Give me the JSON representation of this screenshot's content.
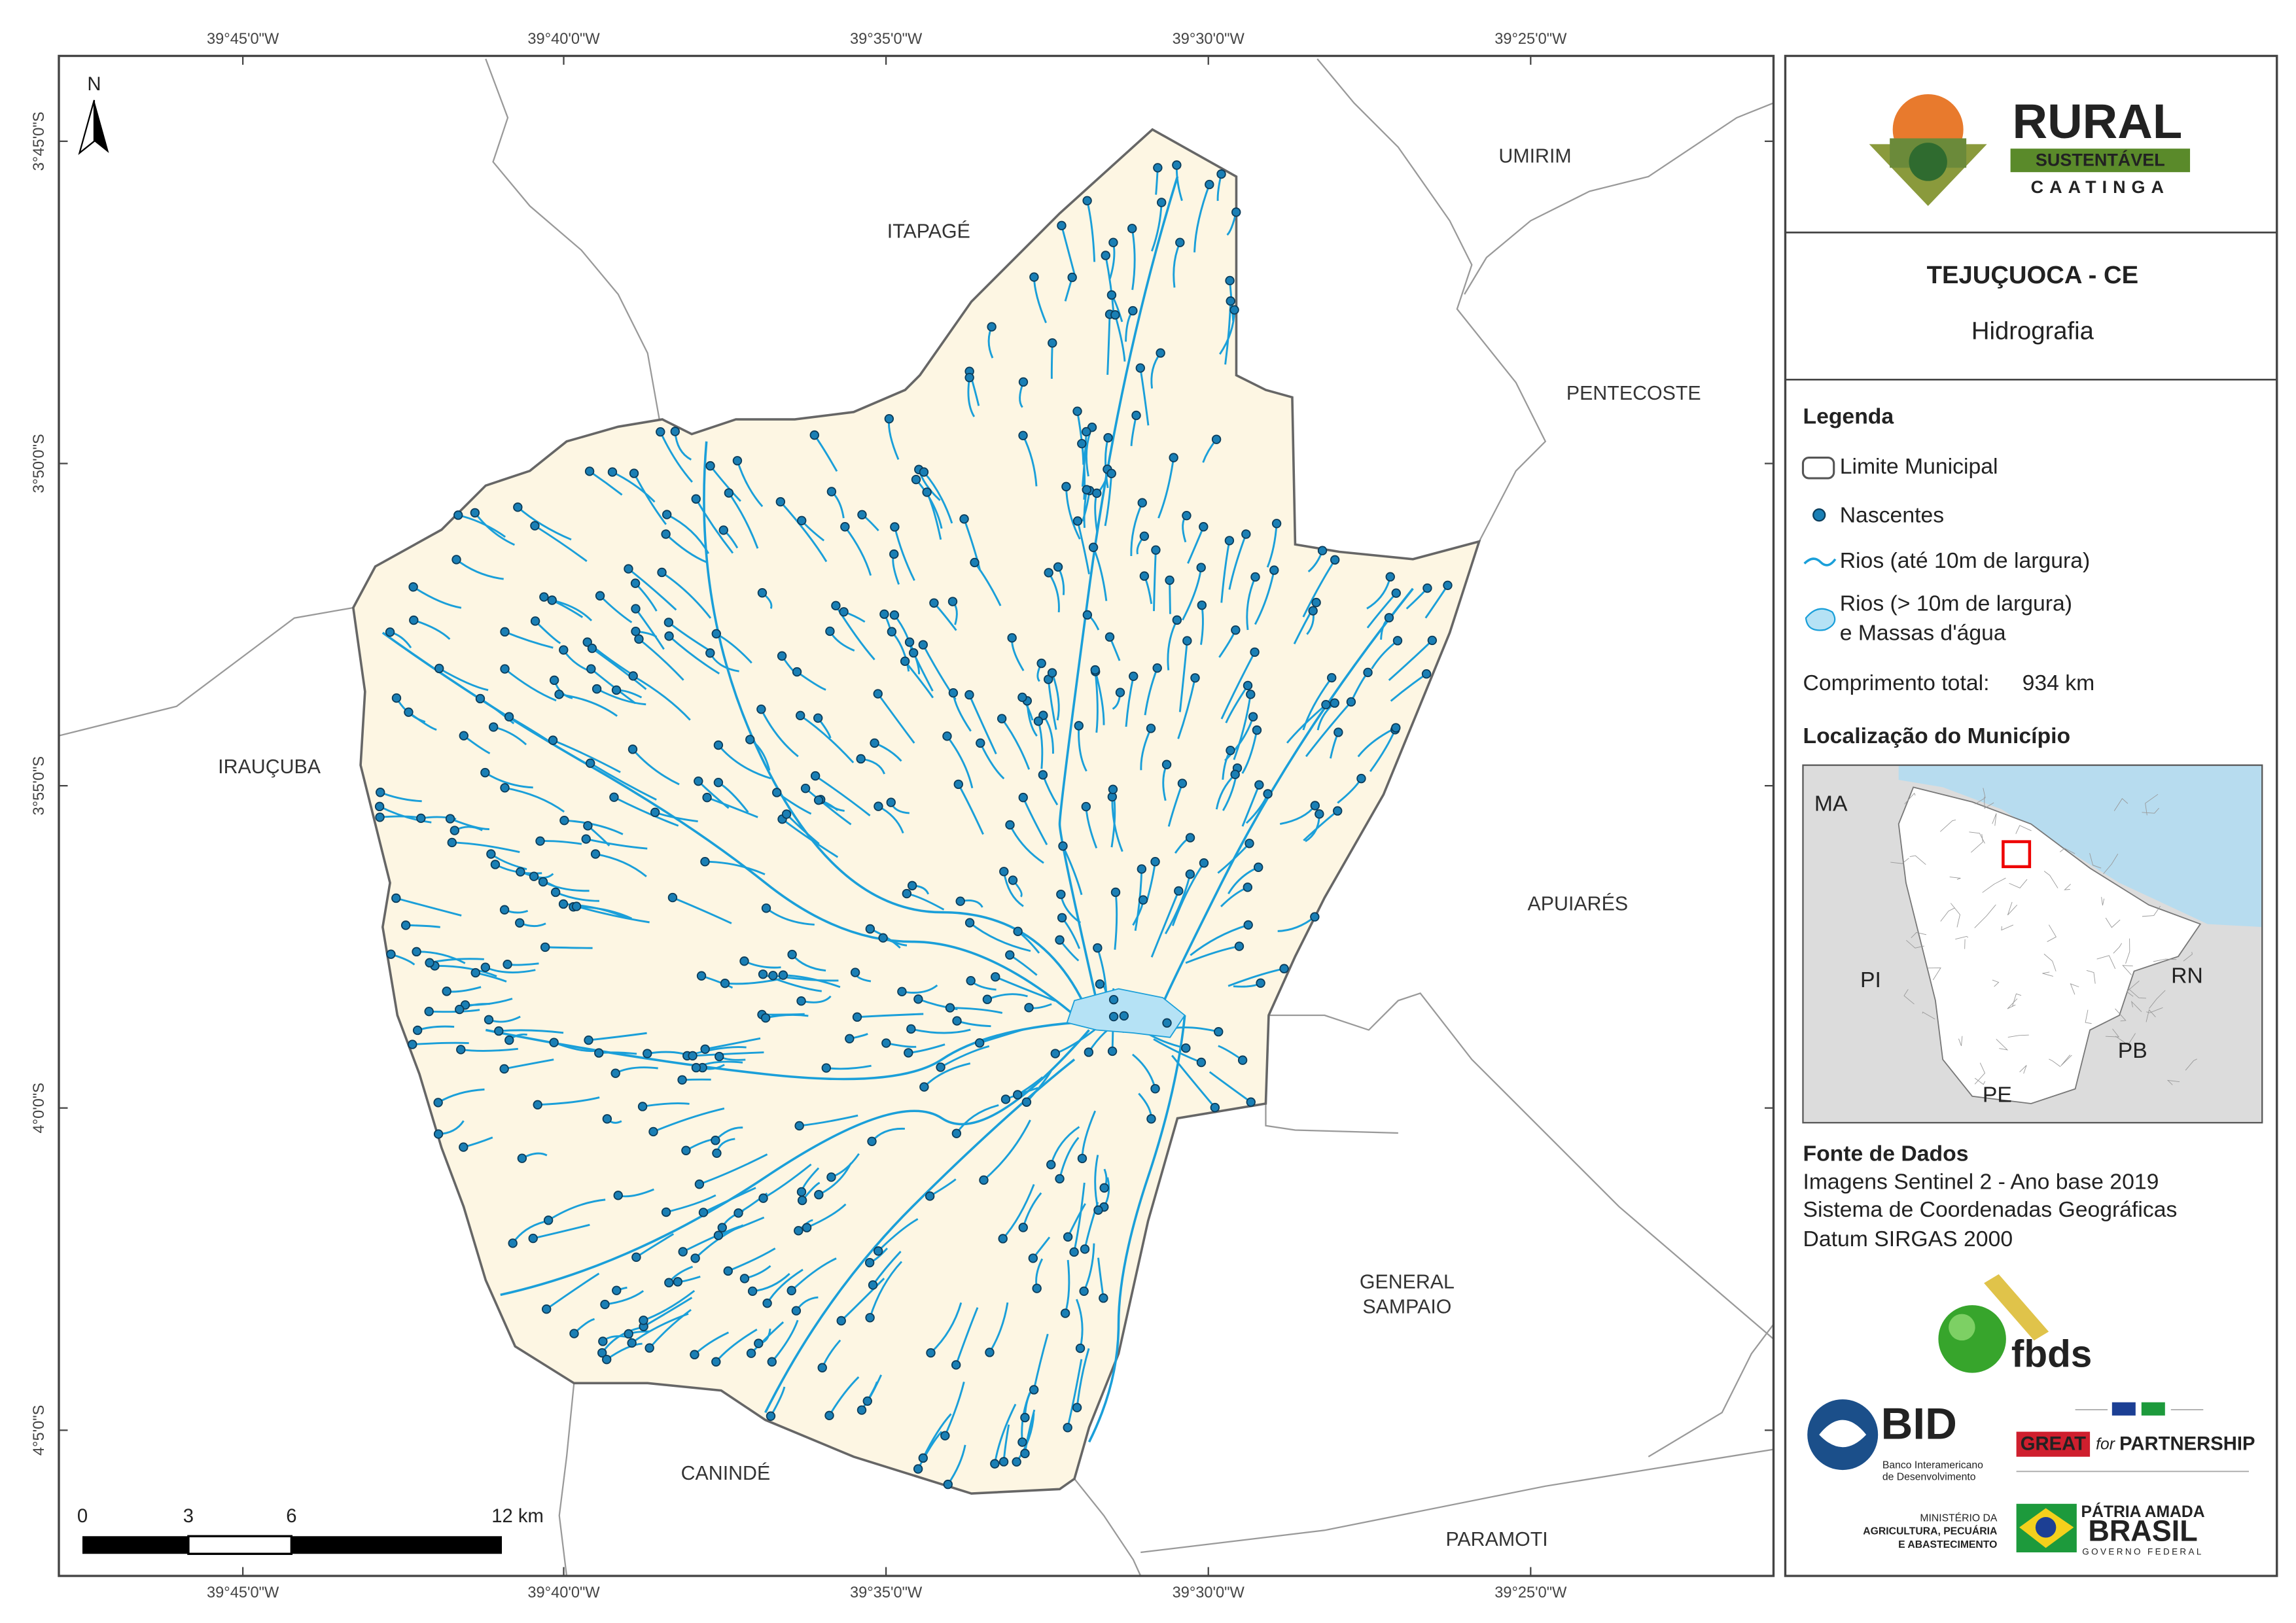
{
  "map": {
    "north": "N",
    "longitude_labels": [
      "39°45'0\"W",
      "39°40'0\"W",
      "39°35'0\"W",
      "39°30'0\"W",
      "39°25'0\"W"
    ],
    "latitude_labels": [
      "3°45'0\"S",
      "3°50'0\"S",
      "3°55'0\"S",
      "4°0'0\"S",
      "4°5'0\"S"
    ],
    "neighbors": [
      "ITAPAGÉ",
      "UMIRIM",
      "PENTECOSTE",
      "IRAUÇUBA",
      "APUIARÉS",
      "GENERAL",
      "SAMPAIO",
      "CANINDÉ",
      "PARAMOTI"
    ],
    "scale_labels": [
      "0",
      "3",
      "6",
      "12 km"
    ]
  },
  "brand": {
    "name": "RURAL",
    "tag": "SUSTENTÁVEL",
    "region": "CAATINGA"
  },
  "header": {
    "title": "TEJUÇUOCA - CE",
    "subtitle": "Hidrografia"
  },
  "legend": {
    "title": "Legenda",
    "boundary": "Limite Municipal",
    "springs": "Nascentes",
    "rivers": "Rios (até 10m de largura)",
    "wide_rivers": [
      "Rios (> 10m de largura)",
      "e Massas d'água"
    ]
  },
  "total_length": {
    "label": "Comprimento total:",
    "value": "934 km"
  },
  "location": {
    "title": "Localização do Município",
    "states": [
      "MA",
      "PI",
      "RN",
      "PB",
      "PE"
    ]
  },
  "sources": {
    "title": "Fonte de Dados",
    "lines": [
      "Imagens Sentinel 2 - Ano base 2019",
      "Sistema de Coordenadas Geográficas",
      "Datum SIRGAS 2000"
    ]
  },
  "logos": {
    "fbds": "fbds",
    "bid": "BID",
    "bid_name": [
      "Banco Interamericano",
      "de Desenvolvimento"
    ],
    "great": "GREAT",
    "great_for": "for",
    "partnership": "PARTNERSHIP",
    "ministry": [
      "MINISTÉRIO DA",
      "AGRICULTURA, PECUÁRIA",
      "E ABASTECIMENTO"
    ],
    "brasil_motto": "PÁTRIA AMADA",
    "brasil": "BRASIL",
    "government": "GOVERNO FEDERAL"
  }
}
